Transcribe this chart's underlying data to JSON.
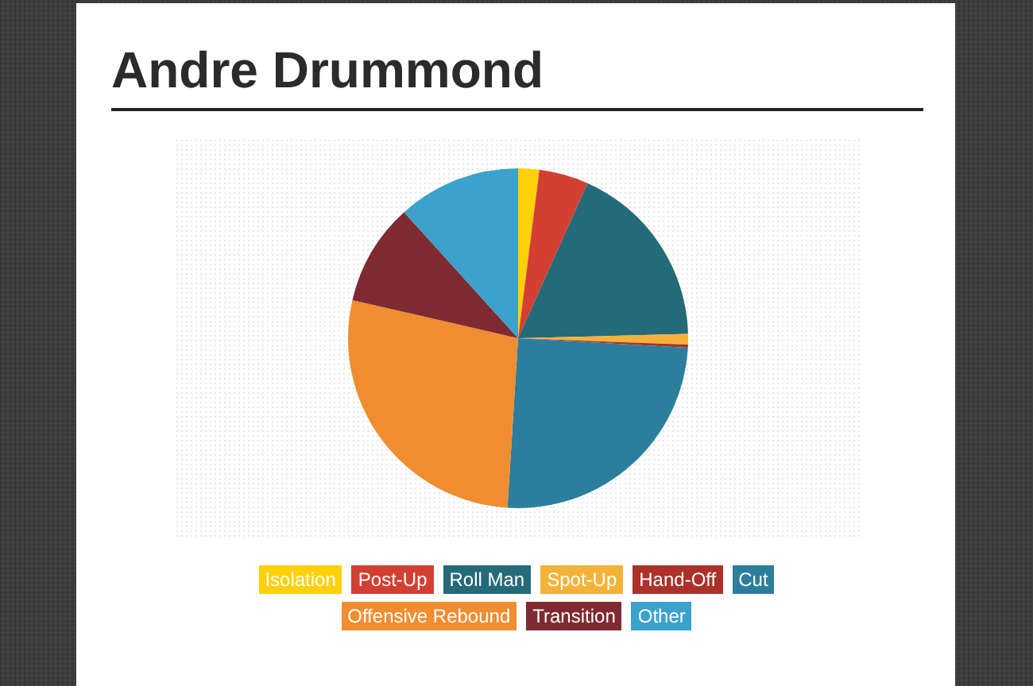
{
  "chart_data": {
    "type": "pie",
    "title": "Andre Drummond",
    "categories": [
      "Isolation",
      "Post-Up",
      "Roll Man",
      "Spot-Up",
      "Hand-Off",
      "Cut",
      "Offensive Rebound",
      "Transition",
      "Other"
    ],
    "values": [
      2.0,
      4.7,
      17.9,
      1.0,
      0.3,
      25.1,
      27.6,
      9.7,
      11.7
    ],
    "colors": [
      "#fed008",
      "#d43f33",
      "#256a78",
      "#f4b23a",
      "#ab3129",
      "#2c7e9c",
      "#f18d31",
      "#7f2a31",
      "#3aa2cb"
    ],
    "legend": "bottom"
  }
}
